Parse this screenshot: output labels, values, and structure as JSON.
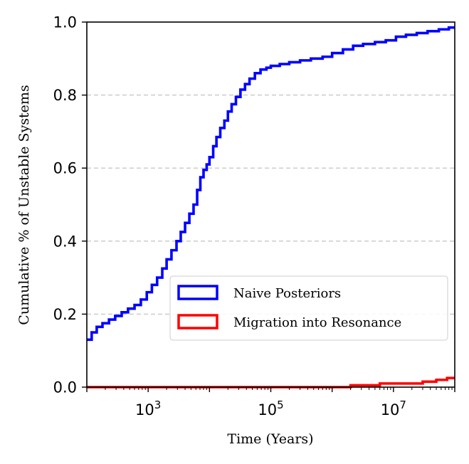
{
  "chart_data": {
    "type": "line",
    "step": true,
    "xlabel": "Time (Years)",
    "ylabel": "Cumulative % of Unstable Systems",
    "xscale": "log",
    "xlim": [
      100,
      100000000
    ],
    "ylim": [
      0.0,
      1.0
    ],
    "x_ticks": [
      {
        "value": 1000,
        "base": "10",
        "exp": "3"
      },
      {
        "value": 100000,
        "base": "10",
        "exp": "5"
      },
      {
        "value": 10000000,
        "base": "10",
        "exp": "7"
      }
    ],
    "y_ticks": [
      {
        "value": 0.0,
        "label": "0.0"
      },
      {
        "value": 0.2,
        "label": "0.2"
      },
      {
        "value": 0.4,
        "label": "0.4"
      },
      {
        "value": 0.6,
        "label": "0.6"
      },
      {
        "value": 0.8,
        "label": "0.8"
      },
      {
        "value": 1.0,
        "label": "1.0"
      }
    ],
    "grid": "horizontal dashed",
    "legend_position": "center-right",
    "series": [
      {
        "name": "Naive Posteriors",
        "color": "#0000ff",
        "points": [
          [
            100,
            0.13
          ],
          [
            120,
            0.15
          ],
          [
            145,
            0.165
          ],
          [
            180,
            0.175
          ],
          [
            230,
            0.185
          ],
          [
            290,
            0.195
          ],
          [
            370,
            0.205
          ],
          [
            470,
            0.215
          ],
          [
            600,
            0.225
          ],
          [
            760,
            0.24
          ],
          [
            950,
            0.26
          ],
          [
            1150,
            0.28
          ],
          [
            1400,
            0.3
          ],
          [
            1700,
            0.325
          ],
          [
            2000,
            0.35
          ],
          [
            2400,
            0.375
          ],
          [
            2900,
            0.4
          ],
          [
            3400,
            0.425
          ],
          [
            4000,
            0.45
          ],
          [
            4700,
            0.475
          ],
          [
            5500,
            0.5
          ],
          [
            6300,
            0.54
          ],
          [
            7100,
            0.575
          ],
          [
            8000,
            0.595
          ],
          [
            9000,
            0.61
          ],
          [
            10000,
            0.63
          ],
          [
            11500,
            0.66
          ],
          [
            13000,
            0.685
          ],
          [
            15000,
            0.71
          ],
          [
            17500,
            0.73
          ],
          [
            20000,
            0.755
          ],
          [
            23000,
            0.775
          ],
          [
            27000,
            0.795
          ],
          [
            32000,
            0.815
          ],
          [
            38000,
            0.83
          ],
          [
            45000,
            0.845
          ],
          [
            55000,
            0.86
          ],
          [
            68000,
            0.87
          ],
          [
            85000,
            0.875
          ],
          [
            100000,
            0.88
          ],
          [
            140000,
            0.885
          ],
          [
            200000,
            0.89
          ],
          [
            300000,
            0.895
          ],
          [
            450000,
            0.9
          ],
          [
            700000,
            0.905
          ],
          [
            1000000,
            0.915
          ],
          [
            1500000,
            0.925
          ],
          [
            2200000,
            0.935
          ],
          [
            3200000,
            0.94
          ],
          [
            5000000,
            0.945
          ],
          [
            7500000,
            0.95
          ],
          [
            11000000,
            0.96
          ],
          [
            16000000,
            0.965
          ],
          [
            24000000,
            0.97
          ],
          [
            36000000,
            0.975
          ],
          [
            55000000,
            0.98
          ],
          [
            80000000,
            0.985
          ],
          [
            100000000,
            0.985
          ]
        ]
      },
      {
        "name": "Migration into Resonance",
        "color": "#ff0000",
        "points": [
          [
            100,
            0.0
          ],
          [
            800000,
            0.0
          ],
          [
            2000000,
            0.005
          ],
          [
            6000000,
            0.01
          ],
          [
            30000000,
            0.015
          ],
          [
            50000000,
            0.02
          ],
          [
            75000000,
            0.025
          ],
          [
            100000000,
            0.025
          ]
        ]
      }
    ]
  }
}
